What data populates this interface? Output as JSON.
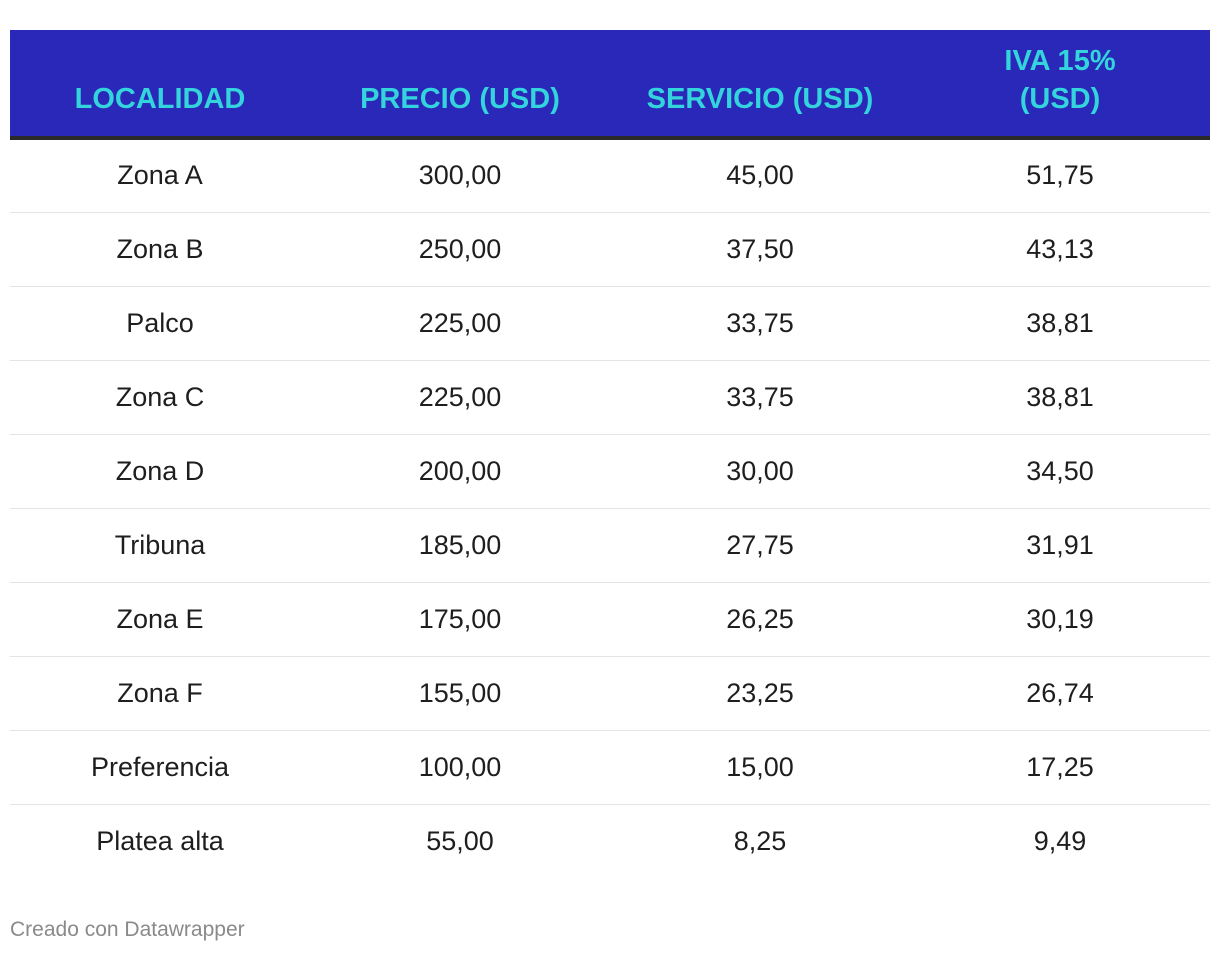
{
  "chart_data": {
    "type": "table",
    "columns": [
      "LOCALIDAD",
      "PRECIO (USD)",
      "SERVICIO (USD)",
      "IVA 15% (USD)"
    ],
    "column_lines": [
      [
        "LOCALIDAD"
      ],
      [
        "PRECIO (USD)"
      ],
      [
        "SERVICIO (USD)"
      ],
      [
        "IVA 15%",
        "(USD)"
      ]
    ],
    "rows": [
      [
        "Zona A",
        "300,00",
        "45,00",
        "51,75"
      ],
      [
        "Zona B",
        "250,00",
        "37,50",
        "43,13"
      ],
      [
        "Palco",
        "225,00",
        "33,75",
        "38,81"
      ],
      [
        "Zona C",
        "225,00",
        "33,75",
        "38,81"
      ],
      [
        "Zona D",
        "200,00",
        "30,00",
        "34,50"
      ],
      [
        "Tribuna",
        "185,00",
        "27,75",
        "31,91"
      ],
      [
        "Zona E",
        "175,00",
        "26,25",
        "30,19"
      ],
      [
        "Zona F",
        "155,00",
        "23,25",
        "26,74"
      ],
      [
        "Preferencia",
        "100,00",
        "15,00",
        "17,25"
      ],
      [
        "Platea alta",
        "55,00",
        "8,25",
        "9,49"
      ]
    ],
    "header_background": "#2a28b9",
    "header_text_color": "#33d4dc"
  },
  "footer": {
    "credit": "Creado con Datawrapper"
  }
}
